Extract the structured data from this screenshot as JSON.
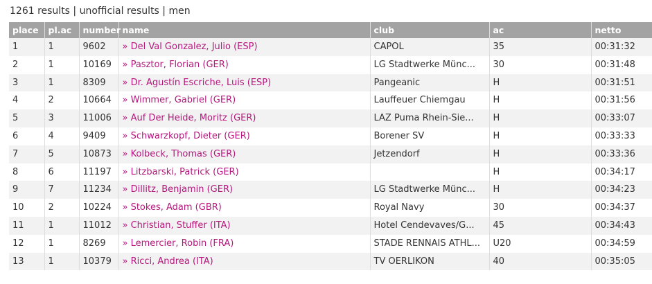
{
  "header": {
    "title": "1261 results | unofficial results | men"
  },
  "table": {
    "columns": [
      "place",
      "pl.ac",
      "number",
      "name",
      "club",
      "ac",
      "netto"
    ],
    "rows": [
      [
        "1",
        "1",
        "9602",
        "» Del Val Gonzalez, Julio (ESP)",
        "CAPOL",
        "35",
        "00:31:32"
      ],
      [
        "2",
        "1",
        "10169",
        "» Pasztor, Florian (GER)",
        "LG Stadtwerke Münc...",
        "30",
        "00:31:48"
      ],
      [
        "3",
        "1",
        "8309",
        "» Dr. Agustín Escriche, Luis (ESP)",
        "Pangeanic",
        "H",
        "00:31:51"
      ],
      [
        "4",
        "2",
        "10664",
        "» Wimmer, Gabriel (GER)",
        "Lauffeuer Chiemgau",
        "H",
        "00:31:56"
      ],
      [
        "5",
        "3",
        "11006",
        "» Auf Der Heide, Moritz (GER)",
        "LAZ Puma Rhein-Sie...",
        "H",
        "00:33:07"
      ],
      [
        "6",
        "4",
        "9409",
        "» Schwarzkopf, Dieter (GER)",
        "Borener SV",
        "H",
        "00:33:33"
      ],
      [
        "7",
        "5",
        "10873",
        "» Kolbeck, Thomas (GER)",
        "Jetzendorf",
        "H",
        "00:33:36"
      ],
      [
        "8",
        "6",
        "11197",
        "» Litzbarski, Patrick (GER)",
        null,
        "H",
        "00:34:17"
      ],
      [
        "9",
        "7",
        "11234",
        "» Dillitz, Benjamin (GER)",
        "LG Stadtwerke Münc...",
        "H",
        "00:34:23"
      ],
      [
        "10",
        "2",
        "10224",
        "» Stokes, Adam (GBR)",
        "Royal Navy",
        "30",
        "00:34:37"
      ],
      [
        "11",
        "1",
        "11012",
        "» Christian, Stuffer (ITA)",
        "Hotel Cendevaves/G...",
        "45",
        "00:34:43"
      ],
      [
        "12",
        "1",
        "8269",
        "» Lemercier, Robin (FRA)",
        "STADE RENNAIS ATHL...",
        "U20",
        "00:34:59"
      ],
      [
        "13",
        "1",
        "10379",
        "» Ricci, Andrea (ITA)",
        "TV OERLIKON",
        "40",
        "00:35:05"
      ]
    ]
  }
}
